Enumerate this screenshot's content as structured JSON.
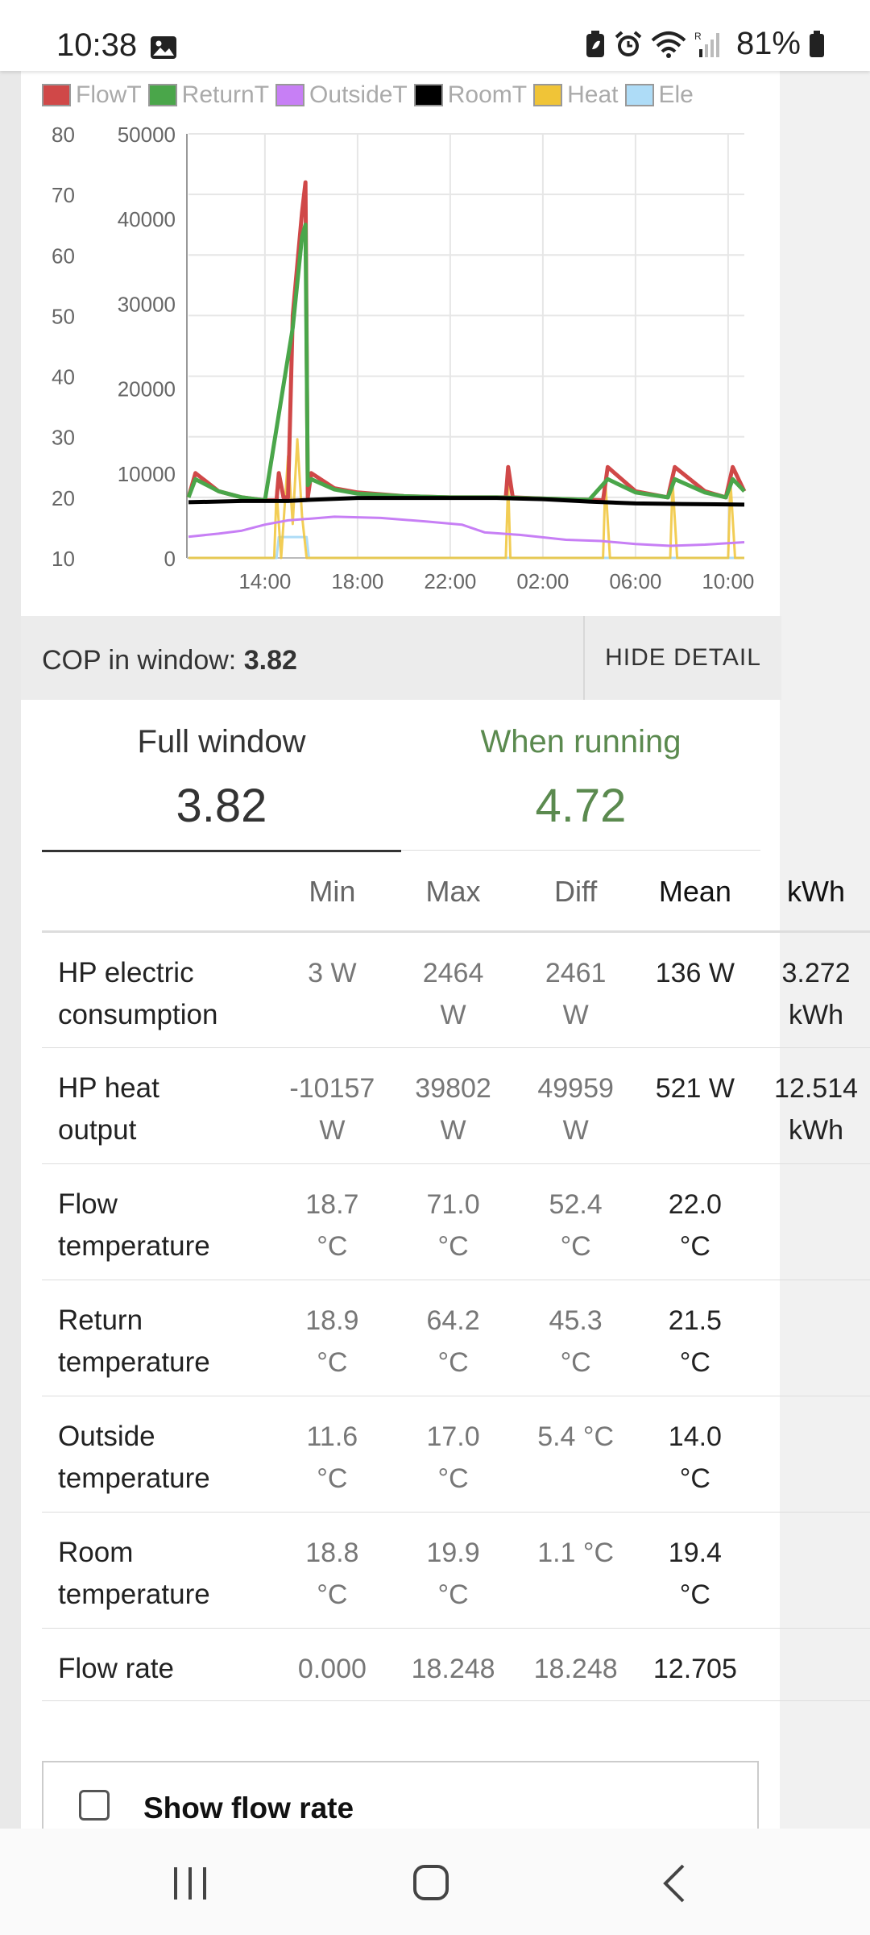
{
  "status_bar": {
    "time": "10:38",
    "battery": "81%",
    "icons": [
      "photo-icon",
      "battery-saver-icon",
      "alarm-icon",
      "wifi-icon",
      "signal-icon",
      "battery-icon"
    ]
  },
  "legend": [
    {
      "label": "FlowT",
      "color": "#d04848"
    },
    {
      "label": "ReturnT",
      "color": "#4aa64a"
    },
    {
      "label": "OutsideT",
      "color": "#c77ff5"
    },
    {
      "label": "RoomT",
      "color": "#000000"
    },
    {
      "label": "Heat",
      "color": "#f0c437"
    },
    {
      "label": "Ele",
      "color": "#aedcf7"
    }
  ],
  "chart_data": {
    "type": "line",
    "x_ticks": [
      "14:00",
      "18:00",
      "22:00",
      "02:00",
      "06:00",
      "10:00"
    ],
    "y_left": {
      "ticks": [
        80,
        70,
        60,
        50,
        40,
        30,
        20,
        10
      ],
      "range": [
        10,
        80
      ]
    },
    "y_right": {
      "ticks": [
        50000,
        40000,
        30000,
        20000,
        10000,
        0
      ],
      "range": [
        0,
        50000
      ]
    },
    "x_range_hours": [
      10.7,
      34.7
    ],
    "grid": true,
    "legend_position": "top",
    "series": [
      {
        "name": "FlowT",
        "axis": "left",
        "color": "#d04848",
        "points": [
          [
            10.7,
            20
          ],
          [
            11.0,
            24
          ],
          [
            12.0,
            21
          ],
          [
            13.0,
            20
          ],
          [
            14.0,
            19.5
          ],
          [
            14.5,
            19.5
          ],
          [
            14.6,
            24
          ],
          [
            14.8,
            20
          ],
          [
            15.0,
            20
          ],
          [
            15.2,
            50
          ],
          [
            15.6,
            67
          ],
          [
            15.75,
            72
          ],
          [
            15.85,
            20
          ],
          [
            16.0,
            24
          ],
          [
            17.0,
            21.5
          ],
          [
            18.0,
            20.8
          ],
          [
            20.0,
            20.2
          ],
          [
            22.0,
            20
          ],
          [
            23.5,
            20
          ],
          [
            24.4,
            20
          ],
          [
            24.5,
            25
          ],
          [
            24.7,
            20
          ],
          [
            26.0,
            19.8
          ],
          [
            28.0,
            19.6
          ],
          [
            28.6,
            19.5
          ],
          [
            28.8,
            25
          ],
          [
            30.0,
            21
          ],
          [
            31.4,
            20
          ],
          [
            31.7,
            25
          ],
          [
            33.0,
            21
          ],
          [
            33.9,
            20
          ],
          [
            34.2,
            25
          ],
          [
            34.7,
            21
          ]
        ]
      },
      {
        "name": "ReturnT",
        "axis": "left",
        "color": "#4aa64a",
        "points": [
          [
            10.7,
            20
          ],
          [
            11.0,
            23
          ],
          [
            12.0,
            21
          ],
          [
            13.0,
            20
          ],
          [
            14.0,
            19.5
          ],
          [
            15.2,
            48
          ],
          [
            15.6,
            63
          ],
          [
            15.75,
            65
          ],
          [
            15.85,
            22
          ],
          [
            16.0,
            23
          ],
          [
            17.0,
            21.3
          ],
          [
            18.0,
            20.6
          ],
          [
            20.0,
            20.2
          ],
          [
            22.0,
            20
          ],
          [
            24.0,
            20
          ],
          [
            26.0,
            19.8
          ],
          [
            28.0,
            19.6
          ],
          [
            28.8,
            23
          ],
          [
            30.0,
            20.8
          ],
          [
            31.4,
            20
          ],
          [
            31.7,
            23
          ],
          [
            33.0,
            20.8
          ],
          [
            33.9,
            20
          ],
          [
            34.2,
            23
          ],
          [
            34.7,
            21
          ]
        ]
      },
      {
        "name": "RoomT",
        "axis": "left",
        "color": "#000000",
        "points": [
          [
            10.7,
            19.2
          ],
          [
            13.0,
            19.4
          ],
          [
            15.0,
            19.4
          ],
          [
            16.0,
            19.6
          ],
          [
            18.0,
            19.9
          ],
          [
            22.0,
            19.9
          ],
          [
            24.0,
            19.9
          ],
          [
            26.0,
            19.7
          ],
          [
            28.0,
            19.3
          ],
          [
            30.0,
            19.0
          ],
          [
            32.0,
            18.9
          ],
          [
            34.7,
            18.8
          ]
        ]
      },
      {
        "name": "OutsideT",
        "axis": "left",
        "color": "#c77ff5",
        "points": [
          [
            10.7,
            13.5
          ],
          [
            12.0,
            14.0
          ],
          [
            13.0,
            14.5
          ],
          [
            14.0,
            15.5
          ],
          [
            15.0,
            16.2
          ],
          [
            16.0,
            16.5
          ],
          [
            17.0,
            16.8
          ],
          [
            19.0,
            16.6
          ],
          [
            21.0,
            16.0
          ],
          [
            22.5,
            15.5
          ],
          [
            23.5,
            14.2
          ],
          [
            25.0,
            13.8
          ],
          [
            27.0,
            13.0
          ],
          [
            28.5,
            12.8
          ],
          [
            30.0,
            12.3
          ],
          [
            31.5,
            12.0
          ],
          [
            33.0,
            12.2
          ],
          [
            34.7,
            12.6
          ]
        ]
      },
      {
        "name": "Heat",
        "axis": "right",
        "color": "#f0c437",
        "points": [
          [
            10.7,
            0
          ],
          [
            14.4,
            0
          ],
          [
            14.5,
            8000
          ],
          [
            14.7,
            0
          ],
          [
            15.0,
            12000
          ],
          [
            15.2,
            4000
          ],
          [
            15.4,
            14000
          ],
          [
            15.6,
            5000
          ],
          [
            15.8,
            0
          ],
          [
            24.4,
            0
          ],
          [
            24.5,
            9000
          ],
          [
            24.6,
            0
          ],
          [
            28.6,
            0
          ],
          [
            28.7,
            9000
          ],
          [
            28.9,
            0
          ],
          [
            31.5,
            0
          ],
          [
            31.6,
            9000
          ],
          [
            31.8,
            0
          ],
          [
            34.0,
            0
          ],
          [
            34.1,
            9000
          ],
          [
            34.3,
            0
          ],
          [
            34.7,
            0
          ]
        ]
      },
      {
        "name": "Ele",
        "axis": "right",
        "color": "#aedcf7",
        "points": [
          [
            10.7,
            0
          ],
          [
            14.5,
            0
          ],
          [
            14.6,
            2464
          ],
          [
            15.8,
            2464
          ],
          [
            15.9,
            0
          ],
          [
            34.7,
            0
          ]
        ]
      }
    ]
  },
  "cop_bar": {
    "label": "COP in window:",
    "value": "3.82",
    "hide_button": "HIDE DETAIL"
  },
  "tabs": {
    "full": {
      "label": "Full window",
      "value": "3.82"
    },
    "running": {
      "label": "When running",
      "value": "4.72"
    }
  },
  "table": {
    "headers": [
      "",
      "Min",
      "Max",
      "Diff",
      "Mean",
      "kWh"
    ],
    "rows": [
      {
        "name": [
          "HP electric",
          "consumption"
        ],
        "min": [
          "3 W",
          ""
        ],
        "max": [
          "2464",
          "W"
        ],
        "diff": [
          "2461",
          "W"
        ],
        "mean": [
          "136 W",
          ""
        ],
        "kwh": [
          "3.272",
          "kWh"
        ]
      },
      {
        "name": [
          "HP heat",
          "output"
        ],
        "min": [
          "-10157",
          "W"
        ],
        "max": [
          "39802",
          "W"
        ],
        "diff": [
          "49959",
          "W"
        ],
        "mean": [
          "521 W",
          ""
        ],
        "kwh": [
          "12.514",
          "kWh"
        ]
      },
      {
        "name": [
          "Flow",
          "temperature"
        ],
        "min": [
          "18.7",
          "°C"
        ],
        "max": [
          "71.0",
          "°C"
        ],
        "diff": [
          "52.4",
          "°C"
        ],
        "mean": [
          "22.0",
          "°C"
        ],
        "kwh": [
          "",
          ""
        ]
      },
      {
        "name": [
          "Return",
          "temperature"
        ],
        "min": [
          "18.9",
          "°C"
        ],
        "max": [
          "64.2",
          "°C"
        ],
        "diff": [
          "45.3",
          "°C"
        ],
        "mean": [
          "21.5",
          "°C"
        ],
        "kwh": [
          "",
          ""
        ]
      },
      {
        "name": [
          "Outside",
          "temperature"
        ],
        "min": [
          "11.6",
          "°C"
        ],
        "max": [
          "17.0",
          "°C"
        ],
        "diff": [
          "5.4 °C",
          ""
        ],
        "mean": [
          "14.0",
          "°C"
        ],
        "kwh": [
          "",
          ""
        ]
      },
      {
        "name": [
          "Room",
          "temperature"
        ],
        "min": [
          "18.8",
          "°C"
        ],
        "max": [
          "19.9",
          "°C"
        ],
        "diff": [
          "1.1 °C",
          ""
        ],
        "mean": [
          "19.4",
          "°C"
        ],
        "kwh": [
          "",
          ""
        ]
      },
      {
        "name": [
          "Flow rate",
          ""
        ],
        "min": [
          "0.000",
          ""
        ],
        "max": [
          "18.248",
          ""
        ],
        "diff": [
          "18.248",
          ""
        ],
        "mean": [
          "12.705",
          ""
        ],
        "kwh": [
          "",
          ""
        ]
      }
    ]
  },
  "show_flow_rate": {
    "label": "Show flow rate",
    "checked": false
  },
  "nav": {
    "icons": [
      "recent-apps-icon",
      "home-icon",
      "back-icon"
    ]
  }
}
